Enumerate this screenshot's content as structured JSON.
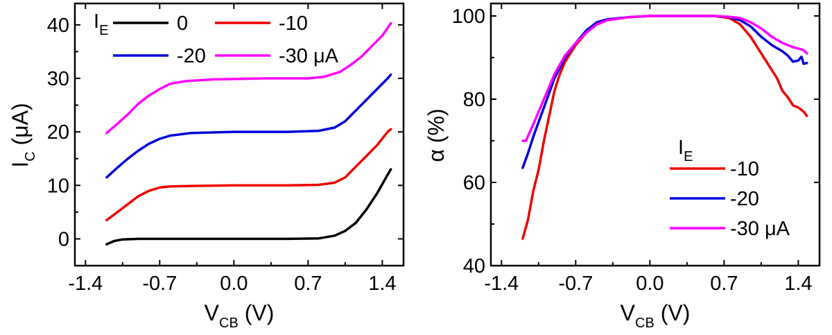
{
  "chart_data": [
    {
      "type": "line",
      "xlabel": "V",
      "xlabel_sub": "CB",
      "xlabel_unit": " (V)",
      "ylabel": "I",
      "ylabel_sub": "C",
      "ylabel_unit": " (μA)",
      "xlim": [
        -1.5,
        1.6
      ],
      "ylim": [
        -5,
        44
      ],
      "x_ticks": [
        -1.4,
        -0.7,
        0.0,
        0.7,
        1.4
      ],
      "x_tick_labels": [
        "-1.4",
        "-0.7",
        "0.0",
        "0.7",
        "1.4"
      ],
      "y_ticks": [
        0,
        10,
        20,
        30,
        40
      ],
      "y_tick_labels": [
        "0",
        "10",
        "20",
        "30",
        "40"
      ],
      "legend_title": "I",
      "legend_title_sub": "E",
      "legend_placement": "top",
      "series": [
        {
          "name": "0",
          "color": "#000000",
          "points": [
            [
              -1.2,
              -1.0
            ],
            [
              -1.13,
              -0.4
            ],
            [
              -1.05,
              -0.1
            ],
            [
              -0.9,
              0
            ],
            [
              -0.5,
              0
            ],
            [
              0.0,
              0
            ],
            [
              0.5,
              0
            ],
            [
              0.8,
              0.1
            ],
            [
              0.95,
              0.6
            ],
            [
              1.05,
              1.5
            ],
            [
              1.15,
              3.0
            ],
            [
              1.25,
              5.5
            ],
            [
              1.35,
              8.5
            ],
            [
              1.45,
              12.0
            ],
            [
              1.48,
              13.0
            ]
          ]
        },
        {
          "name": "-10",
          "color": "#ee0000",
          "points": [
            [
              -1.2,
              3.5
            ],
            [
              -1.1,
              5.0
            ],
            [
              -1.0,
              6.5
            ],
            [
              -0.9,
              8.0
            ],
            [
              -0.8,
              9.0
            ],
            [
              -0.7,
              9.6
            ],
            [
              -0.6,
              9.8
            ],
            [
              -0.4,
              9.9
            ],
            [
              0.0,
              10.0
            ],
            [
              0.5,
              10.0
            ],
            [
              0.8,
              10.1
            ],
            [
              0.95,
              10.5
            ],
            [
              1.05,
              11.5
            ],
            [
              1.15,
              13.5
            ],
            [
              1.25,
              15.5
            ],
            [
              1.35,
              17.5
            ],
            [
              1.45,
              20.0
            ],
            [
              1.48,
              20.5
            ]
          ]
        },
        {
          "name": "-20",
          "color": "#0000dd",
          "points": [
            [
              -1.2,
              11.5
            ],
            [
              -1.1,
              13.3
            ],
            [
              -1.0,
              15.0
            ],
            [
              -0.9,
              16.5
            ],
            [
              -0.8,
              17.8
            ],
            [
              -0.7,
              18.7
            ],
            [
              -0.6,
              19.3
            ],
            [
              -0.4,
              19.8
            ],
            [
              0.0,
              20.0
            ],
            [
              0.5,
              20.0
            ],
            [
              0.8,
              20.2
            ],
            [
              0.95,
              20.8
            ],
            [
              1.05,
              22.0
            ],
            [
              1.15,
              24.0
            ],
            [
              1.25,
              26.0
            ],
            [
              1.35,
              28.0
            ],
            [
              1.45,
              30.0
            ],
            [
              1.48,
              30.7
            ]
          ]
        },
        {
          "name": "-30 μA",
          "color": "#ff00ff",
          "points": [
            [
              -1.2,
              19.8
            ],
            [
              -1.1,
              21.5
            ],
            [
              -1.0,
              23.3
            ],
            [
              -0.9,
              25.3
            ],
            [
              -0.8,
              26.8
            ],
            [
              -0.7,
              28.0
            ],
            [
              -0.6,
              29.0
            ],
            [
              -0.45,
              29.5
            ],
            [
              -0.2,
              29.8
            ],
            [
              0.3,
              30.0
            ],
            [
              0.7,
              30.0
            ],
            [
              0.85,
              30.3
            ],
            [
              1.0,
              31.2
            ],
            [
              1.1,
              32.5
            ],
            [
              1.2,
              34.0
            ],
            [
              1.3,
              36.0
            ],
            [
              1.4,
              38.0
            ],
            [
              1.48,
              40.3
            ]
          ]
        }
      ]
    },
    {
      "type": "line",
      "xlabel": "V",
      "xlabel_sub": "CB",
      "xlabel_unit": " (V)",
      "ylabel": "α",
      "ylabel_unit": " (%)",
      "xlim": [
        -1.5,
        1.6
      ],
      "ylim": [
        40,
        103
      ],
      "x_ticks": [
        -1.4,
        -0.7,
        0.0,
        0.7,
        1.4
      ],
      "x_tick_labels": [
        "-1.4",
        "-0.7",
        "0.0",
        "0.7",
        "1.4"
      ],
      "y_ticks": [
        40,
        60,
        80,
        100
      ],
      "y_tick_labels": [
        "40",
        "60",
        "80",
        "100"
      ],
      "legend_title": "I",
      "legend_title_sub": "E",
      "legend_placement": "bottom-right",
      "series": [
        {
          "name": "-10",
          "color": "#ee0000",
          "points": [
            [
              -1.2,
              46.5
            ],
            [
              -1.15,
              51
            ],
            [
              -1.1,
              58
            ],
            [
              -1.05,
              63
            ],
            [
              -1.0,
              70
            ],
            [
              -0.95,
              76
            ],
            [
              -0.9,
              82
            ],
            [
              -0.85,
              86
            ],
            [
              -0.8,
              89
            ],
            [
              -0.7,
              93
            ],
            [
              -0.6,
              96
            ],
            [
              -0.5,
              98
            ],
            [
              -0.4,
              99
            ],
            [
              -0.2,
              99.7
            ],
            [
              0.0,
              100
            ],
            [
              0.3,
              100
            ],
            [
              0.6,
              100
            ],
            [
              0.75,
              99.5
            ],
            [
              0.85,
              98
            ],
            [
              0.95,
              95
            ],
            [
              1.05,
              91
            ],
            [
              1.15,
              87
            ],
            [
              1.2,
              85
            ],
            [
              1.25,
              82
            ],
            [
              1.3,
              80.5
            ],
            [
              1.35,
              78.5
            ],
            [
              1.4,
              78
            ],
            [
              1.45,
              77
            ],
            [
              1.48,
              76
            ]
          ]
        },
        {
          "name": "-20",
          "color": "#0000dd",
          "points": [
            [
              -1.2,
              63.5
            ],
            [
              -1.15,
              67
            ],
            [
              -1.1,
              71
            ],
            [
              -1.0,
              78
            ],
            [
              -0.9,
              85
            ],
            [
              -0.8,
              90
            ],
            [
              -0.7,
              93.5
            ],
            [
              -0.6,
              96.5
            ],
            [
              -0.5,
              98.5
            ],
            [
              -0.4,
              99.2
            ],
            [
              -0.2,
              99.7
            ],
            [
              0.0,
              100
            ],
            [
              0.3,
              100
            ],
            [
              0.6,
              100
            ],
            [
              0.75,
              99.7
            ],
            [
              0.85,
              99
            ],
            [
              0.95,
              97.5
            ],
            [
              1.05,
              95
            ],
            [
              1.15,
              93
            ],
            [
              1.25,
              91.5
            ],
            [
              1.3,
              90.5
            ],
            [
              1.35,
              89
            ],
            [
              1.4,
              89.3
            ],
            [
              1.43,
              90.2
            ],
            [
              1.45,
              88.5
            ],
            [
              1.48,
              88.7
            ]
          ]
        },
        {
          "name": "-30 μA",
          "color": "#ff00ff",
          "points": [
            [
              -1.2,
              70
            ],
            [
              -1.17,
              70
            ],
            [
              -1.1,
              74
            ],
            [
              -1.0,
              80
            ],
            [
              -0.9,
              86
            ],
            [
              -0.8,
              90.5
            ],
            [
              -0.7,
              93.5
            ],
            [
              -0.6,
              96
            ],
            [
              -0.5,
              98
            ],
            [
              -0.4,
              99
            ],
            [
              -0.2,
              99.7
            ],
            [
              0.0,
              100
            ],
            [
              0.3,
              100
            ],
            [
              0.6,
              100
            ],
            [
              0.75,
              99.8
            ],
            [
              0.85,
              99.5
            ],
            [
              0.95,
              98.5
            ],
            [
              1.05,
              97
            ],
            [
              1.15,
              95
            ],
            [
              1.25,
              93.5
            ],
            [
              1.35,
              92.5
            ],
            [
              1.45,
              91.8
            ],
            [
              1.48,
              91
            ]
          ]
        }
      ]
    }
  ]
}
